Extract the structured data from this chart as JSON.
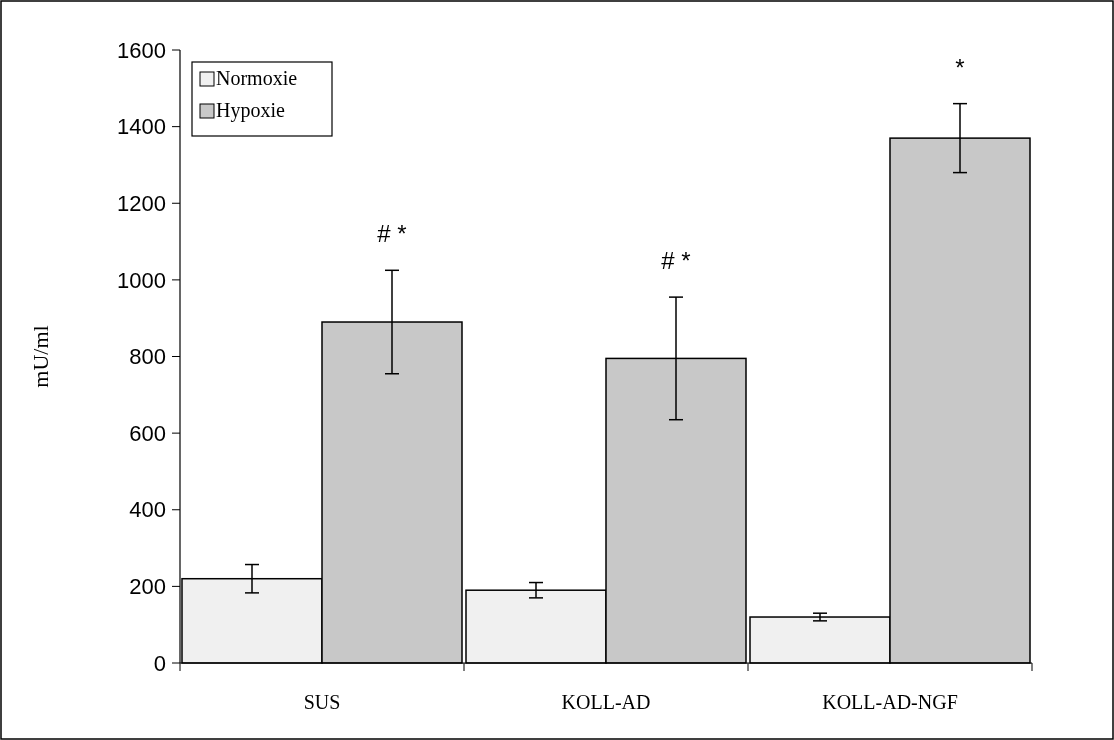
{
  "chart_data": {
    "type": "bar",
    "ylabel": "mU/ml",
    "categories": [
      "SUS",
      "KOLL-AD",
      "KOLL-AD-NGF"
    ],
    "series": [
      {
        "name": "Normoxie",
        "color": "#f0f0f0",
        "values": [
          220,
          190,
          120
        ],
        "errors": [
          37,
          20,
          10
        ]
      },
      {
        "name": "Hypoxie",
        "color": "#c8c8c8",
        "values": [
          890,
          795,
          1370
        ],
        "errors": [
          135,
          160,
          90
        ]
      }
    ],
    "ylim": [
      0,
      1600
    ],
    "yticks": [
      0,
      200,
      400,
      600,
      800,
      1000,
      1200,
      1400,
      1600
    ],
    "grid": false,
    "legend": "top left",
    "annotations": [
      "# *",
      "# *",
      "*"
    ]
  }
}
